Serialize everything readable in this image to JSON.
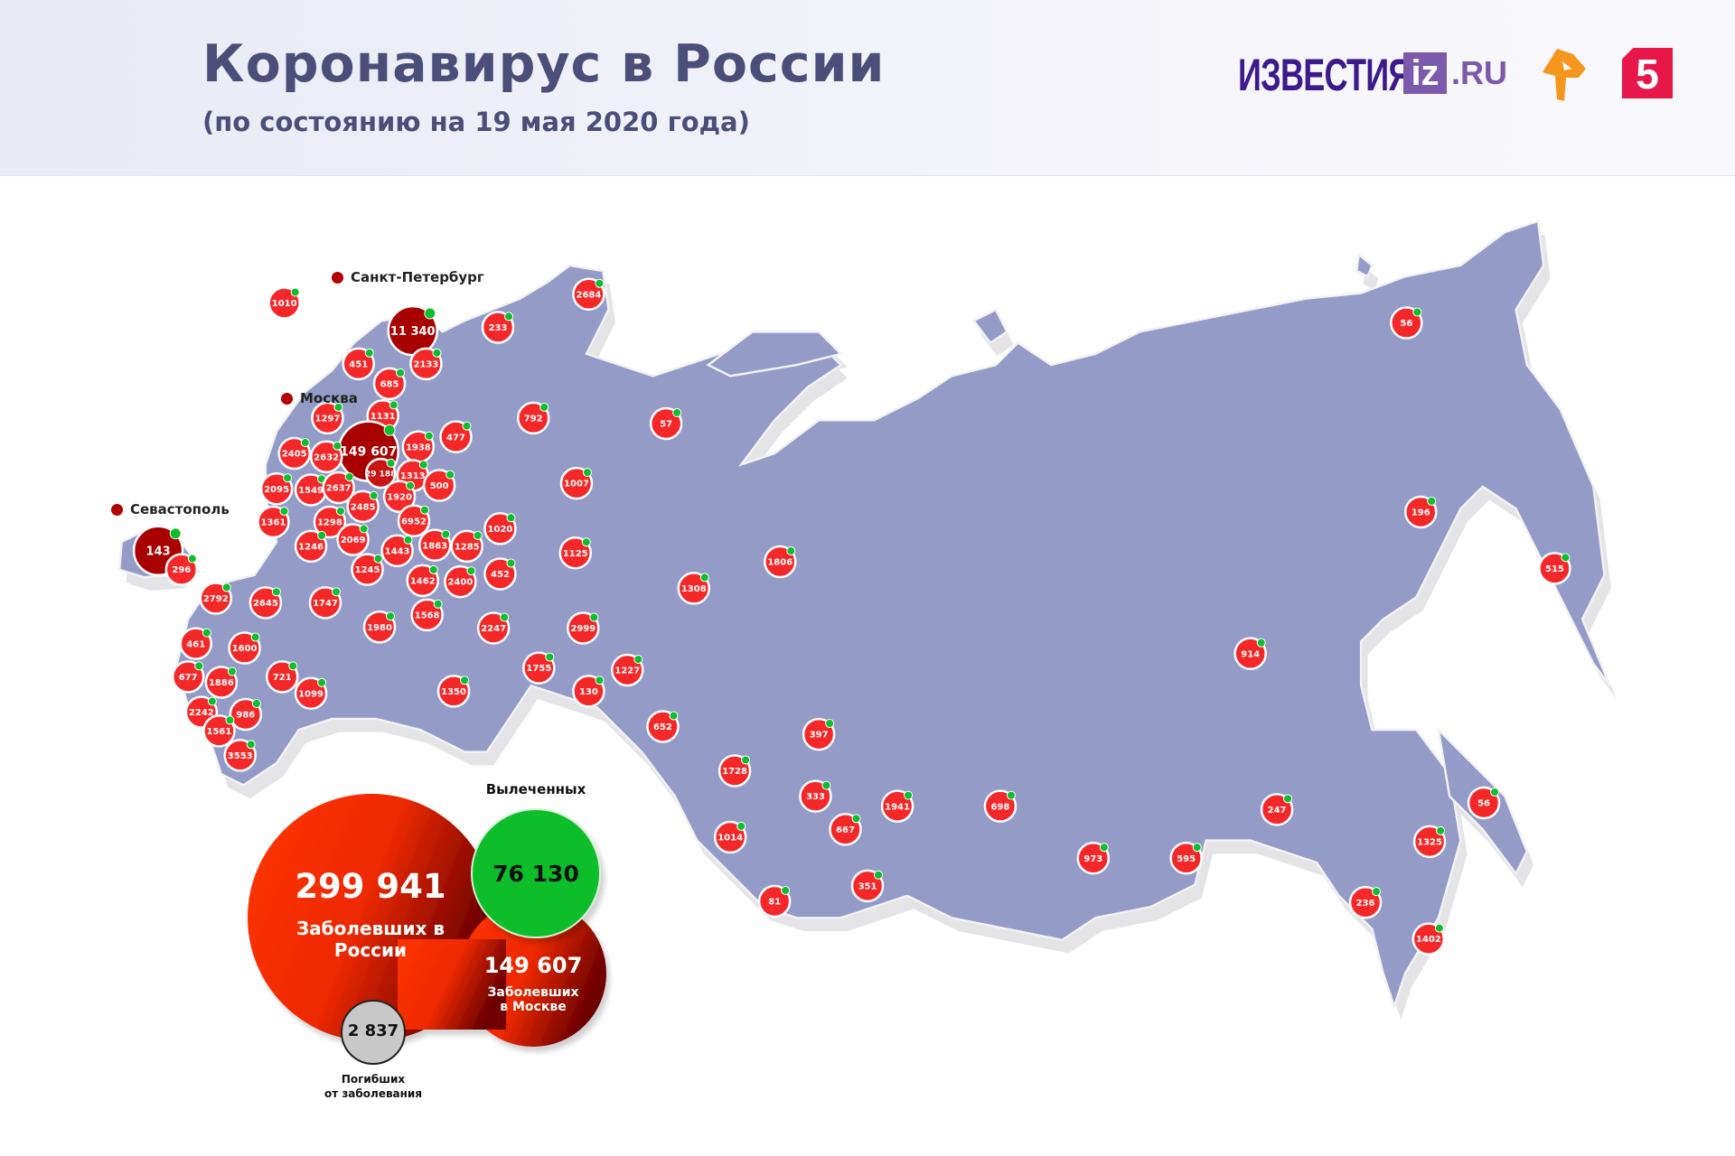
{
  "header": {
    "title": "Коронавирус в России",
    "subtitle": "(по состоянию на 19 мая 2020 года)",
    "logos": {
      "izvestia": "ИЗВЕСТИЯ",
      "iz": "iz",
      "ru": ".RU",
      "ren": "РЕН ТВ",
      "five": "5"
    }
  },
  "cities": {
    "spb": "Санкт-Петербург",
    "moscow": "Москва",
    "sevastopol": "Севастополь"
  },
  "markers": [
    {
      "v": "1010"
    },
    {
      "v": "11 340",
      "type": "city"
    },
    {
      "v": "2133"
    },
    {
      "v": "451"
    },
    {
      "v": "685"
    },
    {
      "v": "233"
    },
    {
      "v": "2684"
    },
    {
      "v": "1297"
    },
    {
      "v": "1131"
    },
    {
      "v": "149 607",
      "type": "capital"
    },
    {
      "v": "29 188",
      "type": "oblast"
    },
    {
      "v": "1938"
    },
    {
      "v": "477"
    },
    {
      "v": "792"
    },
    {
      "v": "57"
    },
    {
      "v": "2405"
    },
    {
      "v": "2632"
    },
    {
      "v": "1313"
    },
    {
      "v": "500"
    },
    {
      "v": "1007"
    },
    {
      "v": "2095"
    },
    {
      "v": "1549"
    },
    {
      "v": "2637"
    },
    {
      "v": "1920"
    },
    {
      "v": "2485"
    },
    {
      "v": "6952"
    },
    {
      "v": "1020"
    },
    {
      "v": "1361"
    },
    {
      "v": "1298"
    },
    {
      "v": "1246"
    },
    {
      "v": "2069"
    },
    {
      "v": "1443"
    },
    {
      "v": "1863"
    },
    {
      "v": "1285"
    },
    {
      "v": "1125"
    },
    {
      "v": "143",
      "type": "city"
    },
    {
      "v": "296"
    },
    {
      "v": "1245"
    },
    {
      "v": "1462"
    },
    {
      "v": "2400"
    },
    {
      "v": "452"
    },
    {
      "v": "1806"
    },
    {
      "v": "1308"
    },
    {
      "v": "2792"
    },
    {
      "v": "2645"
    },
    {
      "v": "1747"
    },
    {
      "v": "1980"
    },
    {
      "v": "1568"
    },
    {
      "v": "2247"
    },
    {
      "v": "2999"
    },
    {
      "v": "461"
    },
    {
      "v": "1600"
    },
    {
      "v": "677"
    },
    {
      "v": "1886"
    },
    {
      "v": "721"
    },
    {
      "v": "1099"
    },
    {
      "v": "1755"
    },
    {
      "v": "130"
    },
    {
      "v": "1227"
    },
    {
      "v": "1350"
    },
    {
      "v": "2242"
    },
    {
      "v": "986"
    },
    {
      "v": "1561"
    },
    {
      "v": "3553"
    },
    {
      "v": "652"
    },
    {
      "v": "397"
    },
    {
      "v": "1728"
    },
    {
      "v": "333"
    },
    {
      "v": "667"
    },
    {
      "v": "1014"
    },
    {
      "v": "1941"
    },
    {
      "v": "698"
    },
    {
      "v": "81"
    },
    {
      "v": "351"
    },
    {
      "v": "973"
    },
    {
      "v": "595"
    },
    {
      "v": "247"
    },
    {
      "v": "914"
    },
    {
      "v": "196"
    },
    {
      "v": "56"
    },
    {
      "v": "515"
    },
    {
      "v": "56"
    },
    {
      "v": "1325"
    },
    {
      "v": "236"
    },
    {
      "v": "1402"
    }
  ],
  "summary": {
    "total_value": "299 941",
    "total_label_1": "Заболевших в",
    "total_label_2": "России",
    "recovered_title": "Вылеченных",
    "recovered_value": "76 130",
    "moscow_value": "149 607",
    "moscow_label_1": "Заболевших",
    "moscow_label_2": "в Москве",
    "deaths_value": "2 837",
    "deaths_label_1": "Погибших",
    "deaths_label_2": "от заболевания"
  },
  "colors": {
    "region": "#939bc6",
    "marker": "#f42828",
    "capital": "#a80000",
    "recovered": "#0cbd2c",
    "accent_title": "#4a4e78"
  }
}
